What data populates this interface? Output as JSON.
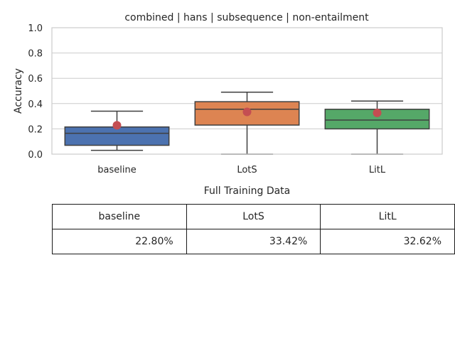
{
  "chart_data": {
    "type": "box",
    "title": "combined | hans | subsequence | non-entailment",
    "ylabel": "Accuracy",
    "xlabel": "",
    "ylim": [
      0.0,
      1.0
    ],
    "yticks": [
      "0.0",
      "0.2",
      "0.4",
      "0.6",
      "0.8",
      "1.0"
    ],
    "grid": true,
    "categories": [
      "baseline",
      "LotS",
      "LitL"
    ],
    "series": [
      {
        "category": "baseline",
        "whisker_low": 0.03,
        "q1": 0.07,
        "median": 0.165,
        "q3": 0.215,
        "whisker_high": 0.34,
        "mean": 0.228,
        "color": "#4c72b0"
      },
      {
        "category": "LotS",
        "whisker_low": 0.0,
        "q1": 0.23,
        "median": 0.355,
        "q3": 0.415,
        "whisker_high": 0.49,
        "mean": 0.3342,
        "color": "#dd8452"
      },
      {
        "category": "LitL",
        "whisker_low": 0.0,
        "q1": 0.2,
        "median": 0.27,
        "q3": 0.355,
        "whisker_high": 0.42,
        "mean": 0.3262,
        "color": "#55a868"
      }
    ],
    "mean_marker_color": "#c44e52"
  },
  "table": {
    "title": "Full Training Data",
    "headers": [
      "baseline",
      "LotS",
      "LitL"
    ],
    "values": [
      "22.80%",
      "33.42%",
      "32.62%"
    ]
  }
}
